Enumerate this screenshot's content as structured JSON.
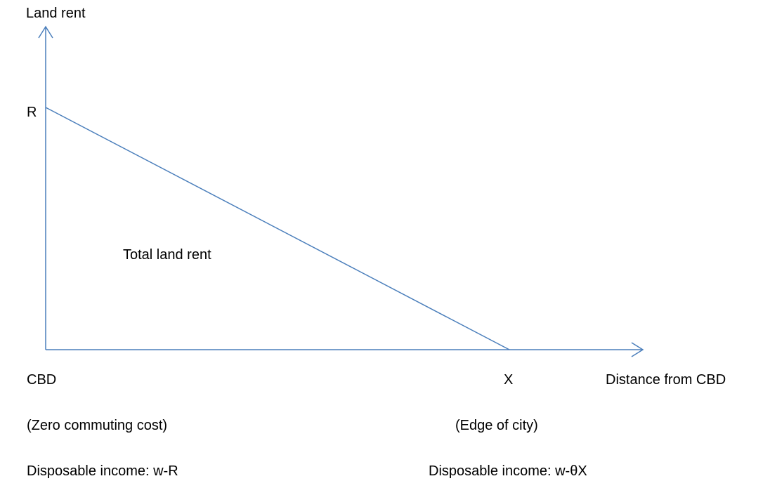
{
  "axes": {
    "y_label": "Land rent",
    "x_label": "Distance from CBD",
    "y_intercept_label": "R",
    "x_intercept_label": "X",
    "origin_label": "CBD"
  },
  "area_label": "Total land rent",
  "notes": {
    "origin_note": "(Zero commuting cost)",
    "edge_note": "(Edge of city)",
    "origin_income": "Disposable income: w-R",
    "edge_income": "Disposable income: w-θX"
  }
}
